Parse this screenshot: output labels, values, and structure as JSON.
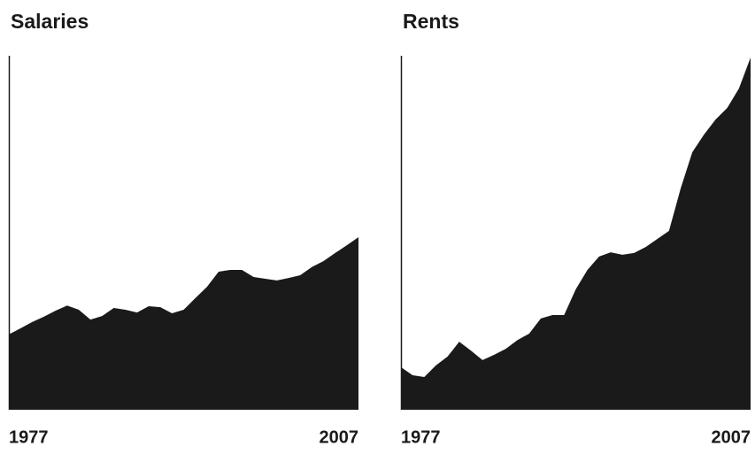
{
  "chart_data": [
    {
      "type": "area",
      "title": "Salaries",
      "x": [
        1977,
        1978,
        1979,
        1980,
        1981,
        1982,
        1983,
        1984,
        1985,
        1986,
        1987,
        1988,
        1989,
        1990,
        1991,
        1992,
        1993,
        1994,
        1995,
        1996,
        1997,
        1998,
        1999,
        2000,
        2001,
        2002,
        2003,
        2004,
        2005,
        2006,
        2007
      ],
      "values": [
        21.4,
        23.1,
        24.9,
        26.4,
        28.1,
        29.6,
        28.4,
        25.6,
        26.6,
        28.9,
        28.4,
        27.6,
        29.4,
        29.1,
        27.4,
        28.4,
        31.7,
        34.9,
        39.2,
        39.7,
        39.7,
        37.7,
        37.2,
        36.7,
        37.4,
        38.2,
        40.5,
        42.2,
        44.5,
        46.7,
        49.0
      ],
      "color": "#1a1a1a",
      "xlim": [
        1977,
        2007
      ],
      "xticks": [
        1977,
        2007
      ],
      "ylim": [
        0,
        100
      ]
    },
    {
      "type": "area",
      "title": "Rents",
      "x": [
        1977,
        1978,
        1979,
        1980,
        1981,
        1982,
        1983,
        1984,
        1985,
        1986,
        1987,
        1988,
        1989,
        1990,
        1991,
        1992,
        1993,
        1994,
        1995,
        1996,
        1997,
        1998,
        1999,
        2000,
        2001,
        2002,
        2003,
        2004,
        2005,
        2006,
        2007
      ],
      "values": [
        12.1,
        9.8,
        9.3,
        12.6,
        15.1,
        19.3,
        16.8,
        14.1,
        15.6,
        17.3,
        19.8,
        21.6,
        25.9,
        26.9,
        26.9,
        34.2,
        39.7,
        43.5,
        44.7,
        44.0,
        44.5,
        46.2,
        48.5,
        50.8,
        62.8,
        73.1,
        78.1,
        82.4,
        85.7,
        91.2,
        100
      ],
      "color": "#1a1a1a",
      "xlim": [
        1977,
        2007
      ],
      "xticks": [
        1977,
        2007
      ],
      "ylim": [
        0,
        100
      ]
    }
  ]
}
